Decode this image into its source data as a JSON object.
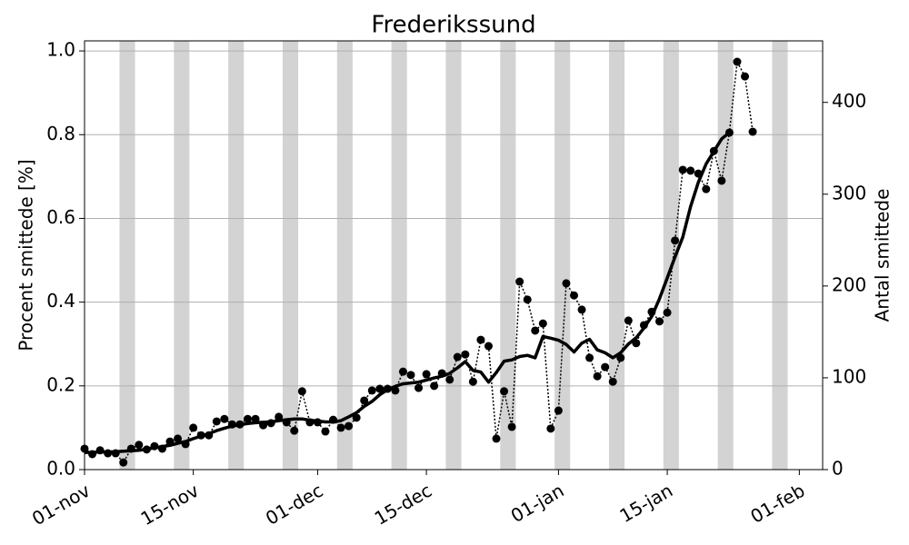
{
  "chart_data": {
    "type": "line",
    "title": "Frederikssund",
    "ylabel": "Procent smittede [%]",
    "y2label": "Antal smittede",
    "x": [
      0,
      1,
      2,
      3,
      4,
      5,
      6,
      7,
      8,
      9,
      10,
      11,
      12,
      13,
      14,
      15,
      16,
      17,
      18,
      19,
      20,
      21,
      22,
      23,
      24,
      25,
      26,
      27,
      28,
      29,
      30,
      31,
      32,
      33,
      34,
      35,
      36,
      37,
      38,
      39,
      40,
      41,
      42,
      43,
      44,
      45,
      46,
      47,
      48,
      49,
      50,
      51,
      52,
      53,
      54,
      55,
      56,
      57,
      58,
      59,
      60,
      61,
      62,
      63,
      64,
      65,
      66,
      67,
      68,
      69,
      70,
      71,
      72,
      73,
      74,
      75,
      76,
      77,
      78,
      79,
      80,
      81,
      82,
      83,
      84,
      85,
      86
    ],
    "xlim": [
      0,
      95
    ],
    "xticks": [
      {
        "value": 0,
        "label": "01-nov"
      },
      {
        "value": 14,
        "label": "15-nov"
      },
      {
        "value": 30,
        "label": "01-dec"
      },
      {
        "value": 44,
        "label": "15-dec"
      },
      {
        "value": 61,
        "label": "01-jan"
      },
      {
        "value": 75,
        "label": "15-jan"
      },
      {
        "value": 92,
        "label": "01-feb"
      }
    ],
    "ylim": [
      0,
      1.024
    ],
    "yticks": [
      {
        "value": 0,
        "label": "0.0"
      },
      0.2,
      0.4,
      0.6,
      0.8,
      {
        "value": 1,
        "label": "1.0"
      }
    ],
    "y2lim": [
      0,
      467
    ],
    "y2ticks": [
      0,
      100,
      200,
      300,
      400
    ],
    "grid": true,
    "shade_color": "#d3d3d3",
    "shaded_spans": [
      [
        4.5,
        6.5
      ],
      [
        11.5,
        13.5
      ],
      [
        18.5,
        20.5
      ],
      [
        25.5,
        27.5
      ],
      [
        32.5,
        34.5
      ],
      [
        39.5,
        41.5
      ],
      [
        46.5,
        48.5
      ],
      [
        53.5,
        55.5
      ],
      [
        60.5,
        62.5
      ],
      [
        67.5,
        69.5
      ],
      [
        74.5,
        76.5
      ],
      [
        81.5,
        83.5
      ],
      [
        88.5,
        90.5
      ]
    ],
    "series": [
      {
        "color": "#000000",
        "line_style": "dotted",
        "line_width": 1.5,
        "marker": true,
        "values": [
          0.05,
          0.037,
          0.046,
          0.039,
          0.039,
          0.017,
          0.05,
          0.059,
          0.048,
          0.056,
          0.05,
          0.067,
          0.074,
          0.061,
          0.1,
          0.082,
          0.082,
          0.115,
          0.121,
          0.108,
          0.108,
          0.121,
          0.121,
          0.106,
          0.111,
          0.126,
          0.113,
          0.093,
          0.187,
          0.113,
          0.113,
          0.091,
          0.119,
          0.1,
          0.104,
          0.124,
          0.165,
          0.189,
          0.193,
          0.193,
          0.189,
          0.234,
          0.226,
          0.195,
          0.228,
          0.2,
          0.23,
          0.215,
          0.269,
          0.275,
          0.21,
          0.31,
          0.295,
          0.074,
          0.187,
          0.102,
          0.449,
          0.406,
          0.332,
          0.349,
          0.098,
          0.141,
          0.445,
          0.416,
          0.382,
          0.267,
          0.223,
          0.245,
          0.21,
          0.267,
          0.356,
          0.302,
          0.345,
          0.377,
          0.354,
          0.375,
          0.547,
          0.716,
          0.714,
          0.707,
          0.67,
          0.761,
          0.69,
          0.805,
          0.974,
          0.939,
          0.807
        ]
      },
      {
        "color": "#000000",
        "line_style": "solid",
        "line_width": 3.5,
        "marker": false,
        "values": [
          0.041,
          0.041,
          0.042,
          0.042,
          0.043,
          0.044,
          0.045,
          0.046,
          0.049,
          0.052,
          0.055,
          0.058,
          0.063,
          0.067,
          0.074,
          0.08,
          0.086,
          0.093,
          0.099,
          0.104,
          0.107,
          0.11,
          0.112,
          0.113,
          0.114,
          0.117,
          0.119,
          0.121,
          0.121,
          0.118,
          0.116,
          0.114,
          0.114,
          0.117,
          0.126,
          0.136,
          0.151,
          0.163,
          0.179,
          0.191,
          0.199,
          0.205,
          0.207,
          0.209,
          0.214,
          0.219,
          0.223,
          0.23,
          0.243,
          0.258,
          0.237,
          0.233,
          0.209,
          0.232,
          0.259,
          0.262,
          0.27,
          0.273,
          0.267,
          0.318,
          0.314,
          0.309,
          0.299,
          0.281,
          0.302,
          0.311,
          0.286,
          0.279,
          0.267,
          0.279,
          0.3,
          0.315,
          0.338,
          0.366,
          0.408,
          0.458,
          0.508,
          0.555,
          0.628,
          0.686,
          0.73,
          0.76,
          0.79,
          0.805,
          null,
          null,
          null
        ]
      }
    ]
  }
}
